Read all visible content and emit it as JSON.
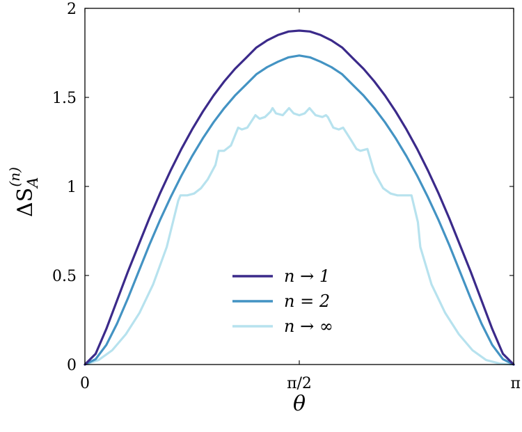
{
  "chart_data": {
    "type": "line",
    "title": "",
    "xlabel": "θ",
    "ylabel": "ΔS_A^(n)",
    "ylabel_parts": {
      "main": "ΔS",
      "subscript": "A",
      "superscript": "(n)"
    },
    "xlim": [
      0,
      3.14159
    ],
    "ylim": [
      0,
      2
    ],
    "x_ticks": [
      {
        "value": 0,
        "label": "0"
      },
      {
        "value": 1.5708,
        "label": "π/2"
      },
      {
        "value": 3.14159,
        "label": "π"
      }
    ],
    "y_ticks": [
      {
        "value": 0,
        "label": "0"
      },
      {
        "value": 0.5,
        "label": "0.5"
      },
      {
        "value": 1,
        "label": "1"
      },
      {
        "value": 1.5,
        "label": "1.5"
      },
      {
        "value": 2,
        "label": "2"
      }
    ],
    "grid": false,
    "legend_position": "bottom-center",
    "series": [
      {
        "name": "n → 1",
        "color": "#3b2a8a",
        "x": [
          0,
          0.0785,
          0.1571,
          0.2356,
          0.3142,
          0.3927,
          0.4712,
          0.5498,
          0.6283,
          0.7069,
          0.7854,
          0.8639,
          0.9425,
          1.021,
          1.0996,
          1.1781,
          1.2566,
          1.3352,
          1.4137,
          1.4923,
          1.5708,
          1.6493,
          1.7279,
          1.8064,
          1.885,
          1.9635,
          2.042,
          2.1206,
          2.1991,
          2.2777,
          2.3562,
          2.4347,
          2.5133,
          2.5918,
          2.6704,
          2.7489,
          2.8274,
          2.906,
          2.9845,
          3.0631,
          3.1416
        ],
        "y": [
          0,
          0.06,
          0.2,
          0.36,
          0.52,
          0.67,
          0.82,
          0.96,
          1.09,
          1.21,
          1.32,
          1.42,
          1.51,
          1.59,
          1.66,
          1.72,
          1.78,
          1.82,
          1.85,
          1.87,
          1.875,
          1.87,
          1.85,
          1.82,
          1.78,
          1.72,
          1.66,
          1.59,
          1.51,
          1.42,
          1.32,
          1.21,
          1.09,
          0.96,
          0.82,
          0.67,
          0.52,
          0.36,
          0.2,
          0.06,
          0
        ]
      },
      {
        "name": "n = 2",
        "color": "#4393c3",
        "x": [
          0,
          0.0785,
          0.1571,
          0.2356,
          0.3142,
          0.3927,
          0.4712,
          0.5498,
          0.6283,
          0.7069,
          0.7854,
          0.8639,
          0.9425,
          1.021,
          1.0996,
          1.1781,
          1.2566,
          1.3352,
          1.4137,
          1.4923,
          1.5708,
          1.6493,
          1.7279,
          1.8064,
          1.885,
          1.9635,
          2.042,
          2.1206,
          2.1991,
          2.2777,
          2.3562,
          2.4347,
          2.5133,
          2.5918,
          2.6704,
          2.7489,
          2.8274,
          2.906,
          2.9845,
          3.0631,
          3.1416
        ],
        "y": [
          0,
          0.03,
          0.11,
          0.23,
          0.37,
          0.52,
          0.67,
          0.81,
          0.94,
          1.06,
          1.17,
          1.27,
          1.36,
          1.44,
          1.51,
          1.57,
          1.63,
          1.67,
          1.7,
          1.725,
          1.735,
          1.725,
          1.7,
          1.67,
          1.63,
          1.57,
          1.51,
          1.44,
          1.36,
          1.27,
          1.17,
          1.06,
          0.94,
          0.81,
          0.67,
          0.52,
          0.37,
          0.23,
          0.11,
          0.03,
          0
        ]
      },
      {
        "name": "n → ∞",
        "color": "#b7e2ee",
        "x": [
          0,
          0.1,
          0.2,
          0.3,
          0.4,
          0.5,
          0.6,
          0.6838,
          0.7,
          0.75,
          0.8,
          0.85,
          0.9,
          0.9564,
          0.98,
          1.02,
          1.07,
          1.1228,
          1.15,
          1.19,
          1.2496,
          1.28,
          1.32,
          1.36,
          1.375,
          1.4,
          1.45,
          1.496,
          1.53,
          1.5708,
          1.61,
          1.6456,
          1.69,
          1.74,
          1.7666,
          1.78,
          1.82,
          1.86,
          1.892,
          1.95,
          1.99,
          2.0188,
          2.07,
          2.12,
          2.1852,
          2.24,
          2.29,
          2.34,
          2.393,
          2.44,
          2.4578,
          2.54,
          2.64,
          2.74,
          2.84,
          2.94,
          3.04,
          3.1416
        ],
        "y": [
          0,
          0.025,
          0.08,
          0.17,
          0.29,
          0.45,
          0.66,
          0.92,
          0.95,
          0.95,
          0.96,
          0.99,
          1.04,
          1.12,
          1.2,
          1.2,
          1.23,
          1.33,
          1.32,
          1.33,
          1.4,
          1.38,
          1.39,
          1.42,
          1.44,
          1.41,
          1.4,
          1.44,
          1.41,
          1.4,
          1.41,
          1.44,
          1.4,
          1.39,
          1.4,
          1.39,
          1.33,
          1.32,
          1.33,
          1.26,
          1.21,
          1.2,
          1.21,
          1.08,
          0.99,
          0.96,
          0.95,
          0.95,
          0.95,
          0.8,
          0.66,
          0.45,
          0.29,
          0.17,
          0.08,
          0.025,
          0.005,
          0
        ]
      }
    ]
  }
}
